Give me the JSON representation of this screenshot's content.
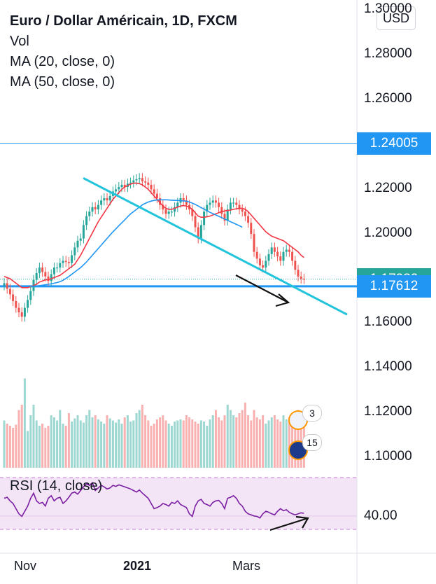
{
  "legend": {
    "title": "Euro / Dollar Américain, 1D, FXCM",
    "vol": "Vol",
    "ma20": "MA (20, close, 0)",
    "ma50": "MA (50, close, 0)"
  },
  "currency_button": "USD",
  "rsi_label": "RSI (14, close)",
  "event_badges": [
    "3",
    "15"
  ],
  "price_labels": [
    {
      "value": "1.24005",
      "color": "#2196f3"
    },
    {
      "value": "1.17930",
      "color": "#26a69a"
    },
    {
      "value": "1.17612",
      "color": "#2196f3"
    }
  ],
  "colors": {
    "up": "#26a69a",
    "down": "#ef5350",
    "ma20": "#f23645",
    "ma50": "#2196f3",
    "trendline": "#22c4db",
    "rsi_line": "#7b1fa2",
    "rsi_band": "#f3e5f5",
    "level_line": "#2196f3"
  },
  "chart_data": {
    "type": "candlestick",
    "title": "Euro / Dollar Américain, 1D, FXCM",
    "y_ticks": [
      "1.30000",
      "1.28000",
      "1.26000",
      "1.24000",
      "1.22000",
      "1.20000",
      "1.18000",
      "1.16000",
      "1.14000",
      "1.12000",
      "1.10000"
    ],
    "ylim": [
      1.094,
      1.302
    ],
    "x_ticks": [
      "Nov",
      "2021",
      "Mars"
    ],
    "rsi_ticks": [
      "40.00"
    ],
    "levels": [
      1.24005,
      1.17612
    ],
    "last_price": 1.1793,
    "trendline": {
      "from": [
        "Déc",
        1.2245
      ],
      "to": [
        "Mar fin",
        1.1635
      ]
    },
    "closes": [
      1.1775,
      1.175,
      1.1725,
      1.1695,
      1.1665,
      1.1645,
      1.1625,
      1.1665,
      1.17,
      1.174,
      1.179,
      1.182,
      1.1845,
      1.1825,
      1.1805,
      1.1785,
      1.1815,
      1.1845,
      1.1845,
      1.1865,
      1.1875,
      1.187,
      1.1865,
      1.19,
      1.1935,
      1.1965,
      1.1975,
      1.2035,
      1.2075,
      1.2095,
      1.2115,
      1.2105,
      1.2125,
      1.2145,
      1.2155,
      1.2145,
      1.2165,
      1.2185,
      1.2195,
      1.2205,
      1.2215,
      1.2205,
      1.222,
      1.2225,
      1.2235,
      1.224,
      1.2245,
      1.223,
      1.2225,
      1.2215,
      1.2195,
      1.2175,
      1.2155,
      1.2125,
      1.2105,
      1.2085,
      1.2095,
      1.2095,
      1.2115,
      1.2135,
      1.2155,
      1.2145,
      1.2125,
      1.2105,
      1.2075,
      1.2025,
      1.1975,
      1.2035,
      1.2095,
      1.2125,
      1.2135,
      1.2145,
      1.2135,
      1.2115,
      1.2085,
      1.2055,
      1.2105,
      1.2135,
      1.2135,
      1.2125,
      1.2105,
      1.2095,
      1.2075,
      1.2045,
      1.1995,
      1.1915,
      1.1885,
      1.1855,
      1.1845,
      1.1875,
      1.1905,
      1.1935,
      1.1915,
      1.1895,
      1.1875,
      1.1915,
      1.1925,
      1.1915,
      1.1875,
      1.1835,
      1.1805,
      1.1795,
      1.1793
    ],
    "ma20": [
      1.1805,
      1.18,
      1.1795,
      1.1785,
      1.1775,
      1.1765,
      1.1755,
      1.1755,
      1.1755,
      1.176,
      1.1765,
      1.177,
      1.178,
      1.1785,
      1.179,
      1.179,
      1.1795,
      1.18,
      1.1805,
      1.181,
      1.182,
      1.183,
      1.184,
      1.185,
      1.186,
      1.188,
      1.19,
      1.1925,
      1.195,
      1.1975,
      1.2,
      1.2025,
      1.205,
      1.207,
      1.209,
      1.211,
      1.213,
      1.215,
      1.2165,
      1.218,
      1.2195,
      1.2205,
      1.2212,
      1.2218,
      1.2222,
      1.2222,
      1.222,
      1.2215,
      1.2205,
      1.2195,
      1.218,
      1.2165,
      1.215,
      1.2135,
      1.212,
      1.211,
      1.2105,
      1.2105,
      1.211,
      1.2115,
      1.212,
      1.2122,
      1.212,
      1.2115,
      1.2105,
      1.209,
      1.2075,
      1.207,
      1.207,
      1.2072,
      1.2075,
      1.208,
      1.2085,
      1.209,
      1.2095,
      1.2098,
      1.21,
      1.2102,
      1.2105,
      1.2108,
      1.211,
      1.211,
      1.2105,
      1.2095,
      1.208,
      1.2065,
      1.205,
      1.2035,
      1.202,
      1.2005,
      1.1995,
      1.1985,
      1.198,
      1.1975,
      1.197,
      1.1965,
      1.1955,
      1.1945,
      1.1935,
      1.1925,
      1.1915,
      1.19,
      1.189
    ],
    "ma50_from_index": 8,
    "ma50": [
      1.1762,
      1.1762,
      1.1762,
      1.1762,
      1.1764,
      1.1766,
      1.1768,
      1.177,
      1.1772,
      1.1775,
      1.1778,
      1.1782,
      1.1788,
      1.1796,
      1.1805,
      1.1815,
      1.1825,
      1.1835,
      1.1845,
      1.1857,
      1.187,
      1.1885,
      1.19,
      1.1915,
      1.193,
      1.1945,
      1.196,
      1.1975,
      1.199,
      1.2005,
      1.2018,
      1.2032,
      1.2045,
      1.2058,
      1.2072,
      1.2085,
      1.2095,
      1.2105,
      1.2115,
      1.2125,
      1.2132,
      1.2138,
      1.2142,
      1.2145,
      1.2147,
      1.2148,
      1.2148,
      1.2148,
      1.2147,
      1.2146,
      1.2145,
      1.2145,
      1.2144,
      1.2143,
      1.2142,
      1.2138,
      1.2133,
      1.2127,
      1.212,
      1.2113,
      1.2106,
      1.2099,
      1.2092,
      1.2086,
      1.208,
      1.2074,
      1.2068,
      1.2062,
      1.2056,
      1.205,
      1.2044,
      1.2038,
      1.2032,
      1.2025
    ],
    "volume_rel": [
      0.45,
      0.42,
      0.4,
      0.38,
      0.41,
      0.55,
      0.6,
      0.85,
      0.35,
      0.5,
      0.6,
      0.45,
      0.4,
      0.42,
      0.38,
      0.4,
      0.5,
      0.48,
      0.45,
      0.55,
      0.42,
      0.4,
      0.52,
      0.44,
      0.47,
      0.5,
      0.45,
      0.43,
      0.5,
      0.55,
      0.48,
      0.5,
      0.46,
      0.44,
      0.42,
      0.5,
      0.47,
      0.45,
      0.43,
      0.46,
      0.42,
      0.48,
      0.5,
      0.44,
      0.45,
      0.52,
      0.55,
      0.6,
      0.5,
      0.45,
      0.4,
      0.42,
      0.46,
      0.48,
      0.5,
      0.45,
      0.42,
      0.4,
      0.44,
      0.45,
      0.46,
      0.45,
      0.5,
      0.48,
      0.46,
      0.44,
      0.42,
      0.45,
      0.44,
      0.4,
      0.46,
      0.5,
      0.55,
      0.48,
      0.45,
      0.5,
      0.6,
      0.55,
      0.5,
      0.48,
      0.52,
      0.55,
      0.62,
      0.5,
      0.45,
      0.55,
      0.48,
      0.46,
      0.5,
      0.42,
      0.45,
      0.48,
      0.5,
      0.46,
      0.44,
      0.5,
      0.46,
      0.48,
      0.52,
      0.5,
      0.55,
      0.5,
      0.48
    ],
    "rsi_rel": [
      0.6,
      0.62,
      0.55,
      0.5,
      0.4,
      0.3,
      0.25,
      0.35,
      0.45,
      0.6,
      0.7,
      0.55,
      0.5,
      0.52,
      0.45,
      0.6,
      0.65,
      0.55,
      0.6,
      0.62,
      0.5,
      0.55,
      0.62,
      0.7,
      0.72,
      0.68,
      0.75,
      0.82,
      0.88,
      0.85,
      0.9,
      0.75,
      0.8,
      0.85,
      0.82,
      0.78,
      0.8,
      0.85,
      0.83,
      0.86,
      0.84,
      0.82,
      0.8,
      0.78,
      0.75,
      0.72,
      0.76,
      0.7,
      0.65,
      0.6,
      0.5,
      0.4,
      0.42,
      0.45,
      0.5,
      0.48,
      0.45,
      0.52,
      0.5,
      0.55,
      0.48,
      0.45,
      0.42,
      0.3,
      0.25,
      0.45,
      0.55,
      0.58,
      0.5,
      0.48,
      0.45,
      0.52,
      0.55,
      0.56,
      0.5,
      0.4,
      0.6,
      0.62,
      0.65,
      0.6,
      0.5,
      0.45,
      0.35,
      0.3,
      0.28,
      0.26,
      0.25,
      0.22,
      0.3,
      0.35,
      0.33,
      0.3,
      0.28,
      0.35,
      0.4,
      0.36,
      0.38,
      0.33,
      0.3,
      0.28,
      0.3,
      0.32,
      0.31
    ]
  }
}
